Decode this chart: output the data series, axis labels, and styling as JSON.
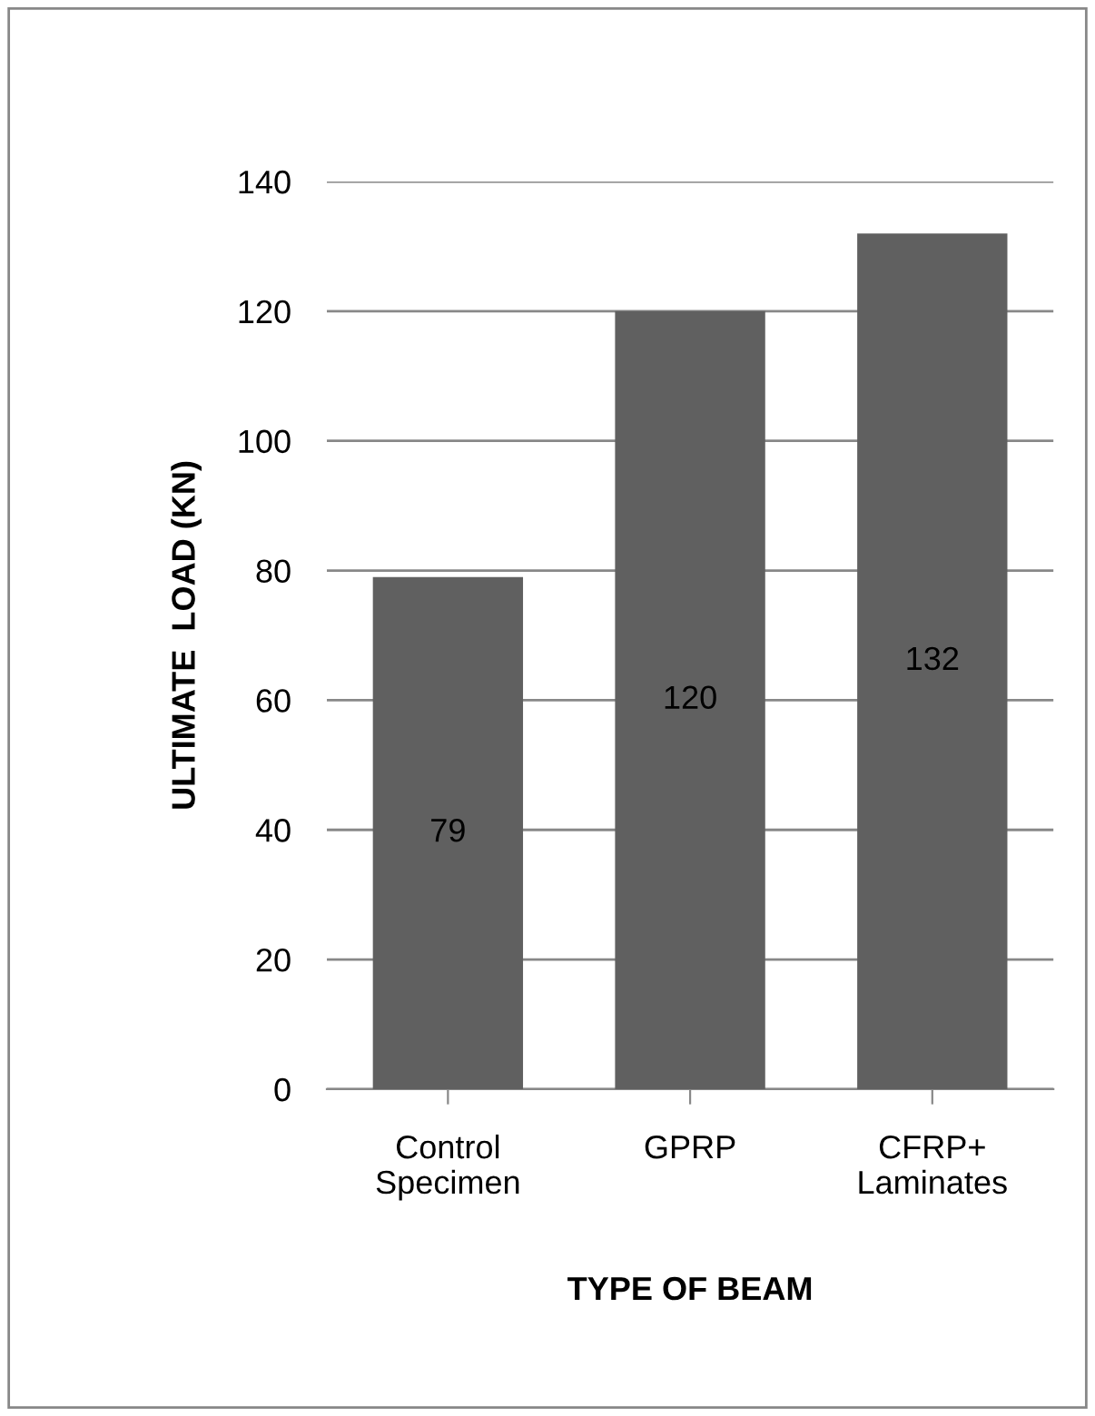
{
  "chart_data": {
    "type": "bar",
    "xlabel": "TYPE OF BEAM",
    "ylabel": "ULTIMATE  LOAD (KN)",
    "categories": [
      "Control\nSpecimen",
      "GPRP",
      "CFRP+\nLaminates"
    ],
    "values": [
      79,
      120,
      132
    ],
    "color": "#606060",
    "ylim": [
      0,
      140
    ],
    "yticks": [
      0,
      20,
      40,
      60,
      80,
      100,
      120,
      140
    ],
    "grid": "y",
    "data_labels": true,
    "legend": false
  }
}
